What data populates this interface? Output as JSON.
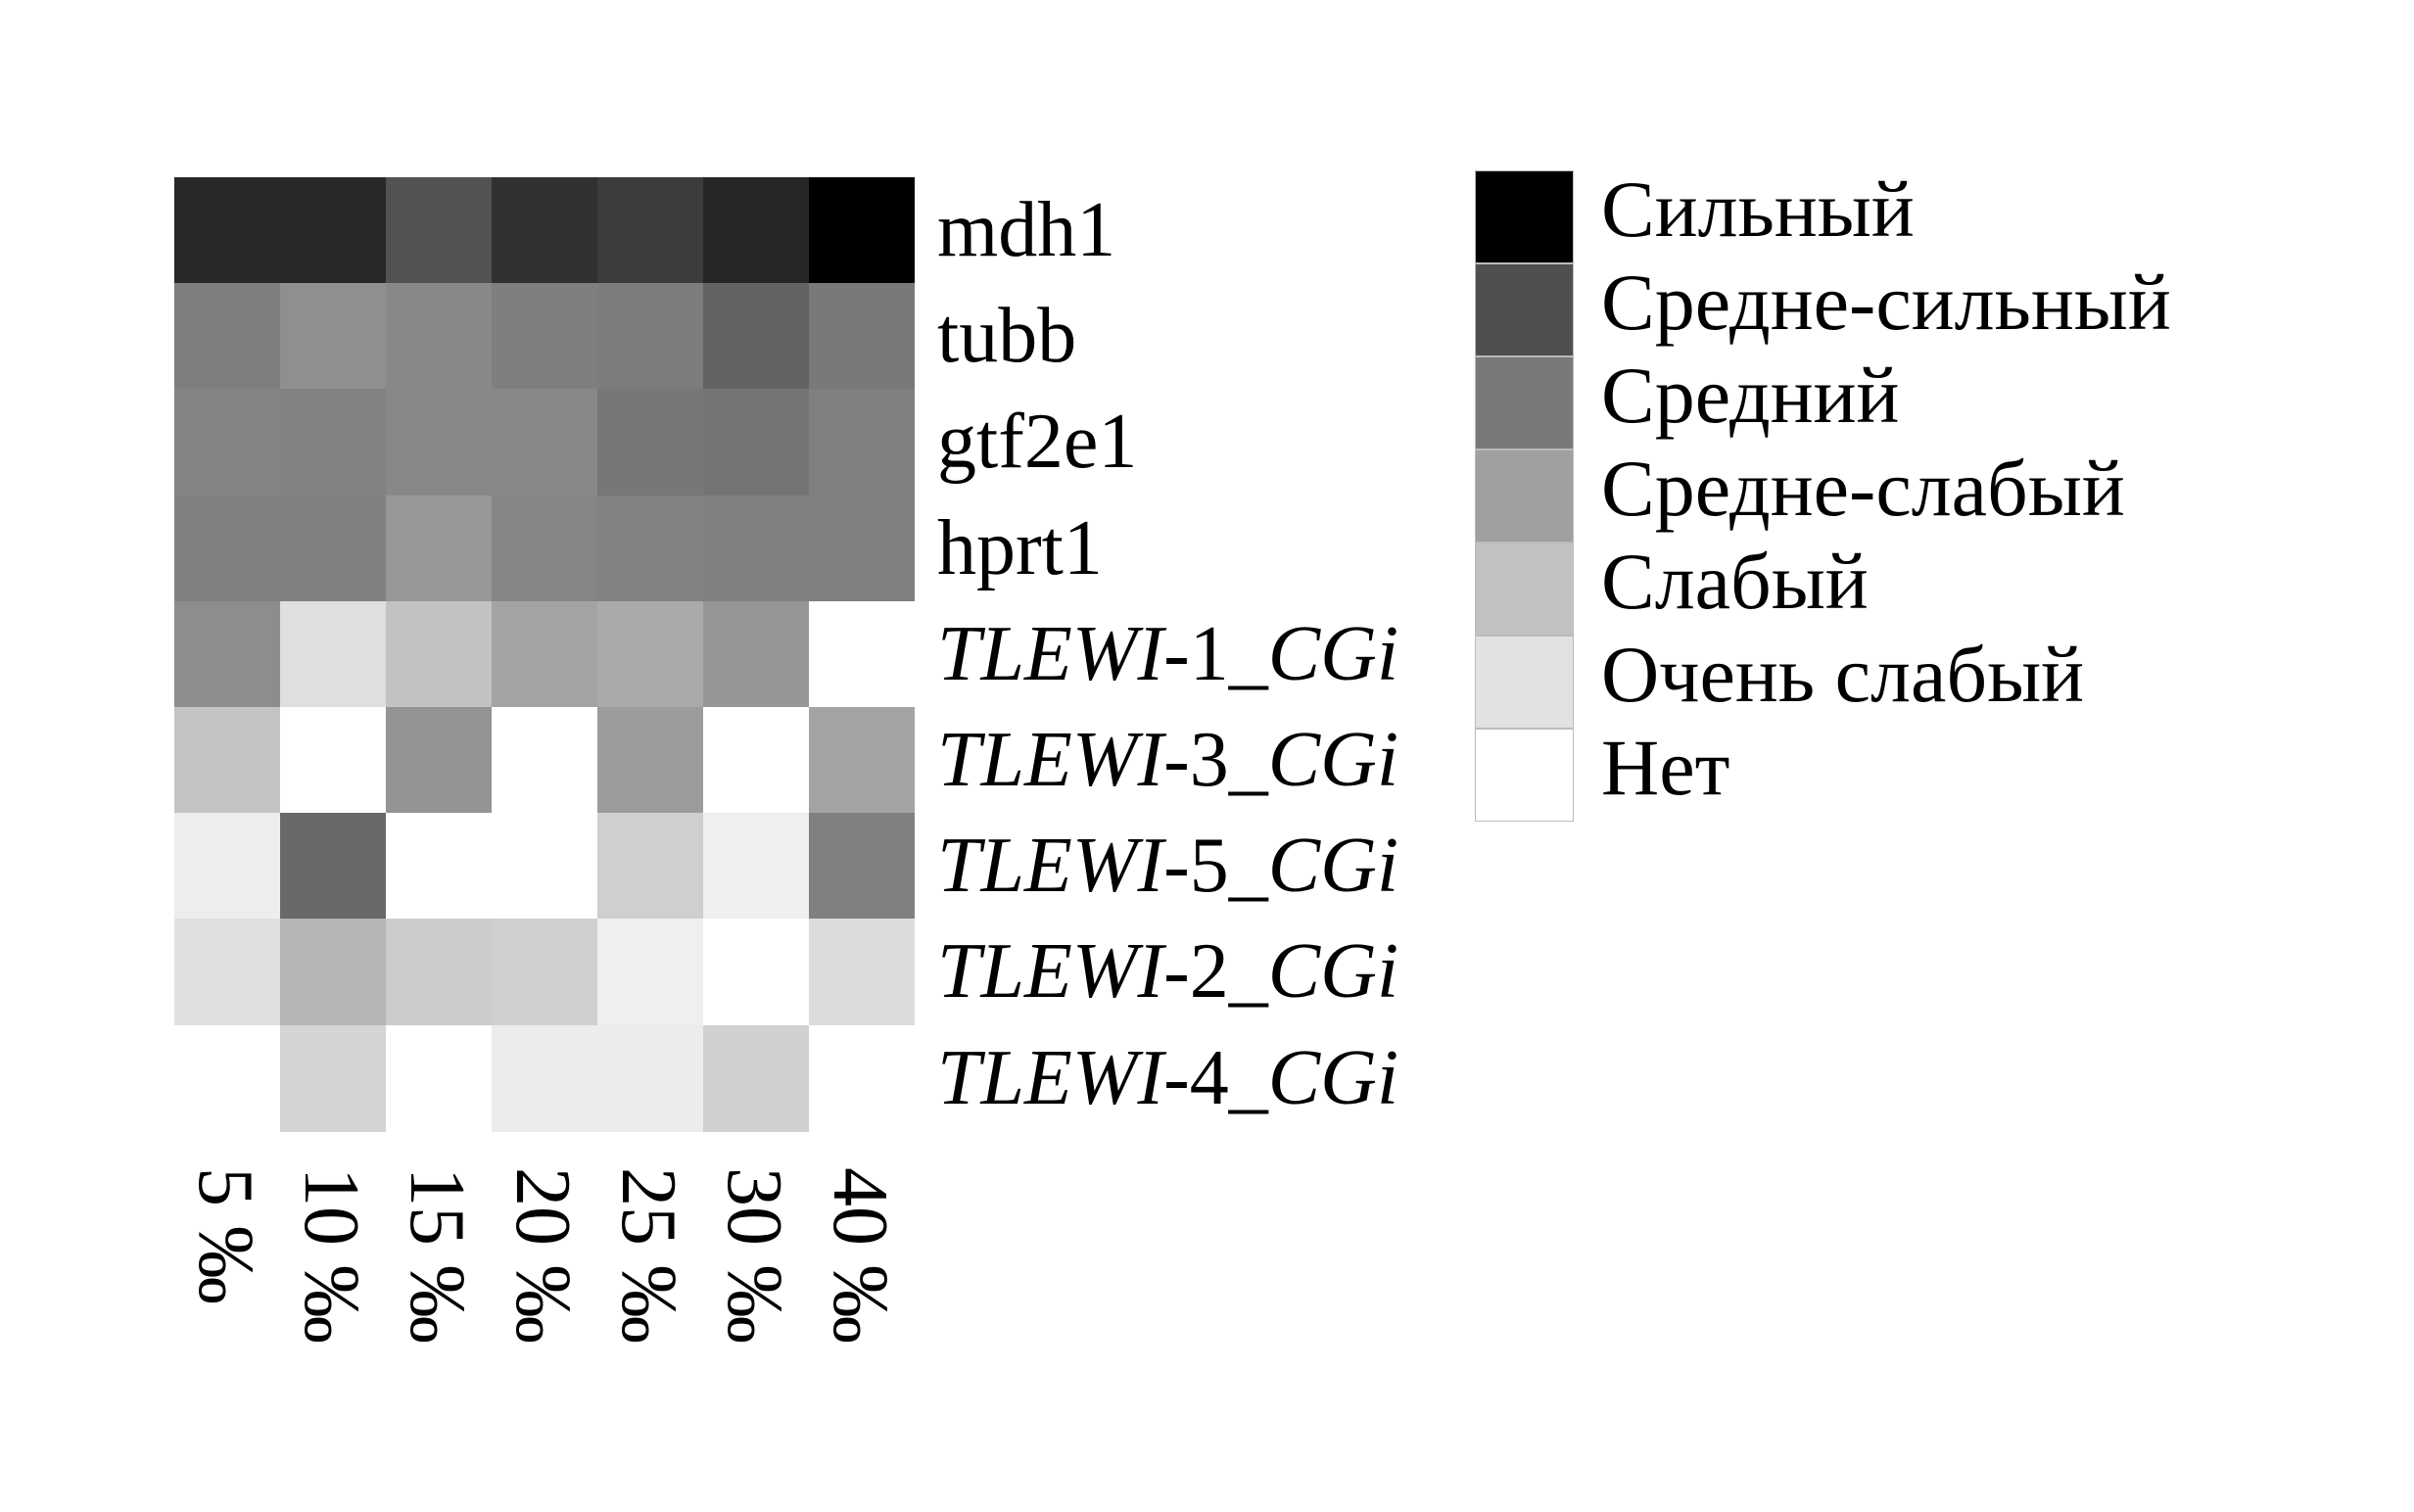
{
  "chart_data": {
    "type": "heatmap",
    "title": "",
    "rows": [
      {
        "label": "mdh1",
        "italic_part": "",
        "rest": "mdh1"
      },
      {
        "label": "tubb",
        "italic_part": "",
        "rest": "tubb"
      },
      {
        "label": "gtf2e1",
        "italic_part": "",
        "rest": "gtf2e1"
      },
      {
        "label": "hprt1",
        "italic_part": "",
        "rest": "hprt1"
      },
      {
        "label": "TLEWI-1_CGi",
        "italic_part": "TLEWI",
        "rest": "-1_",
        "italic_tail": "CGi"
      },
      {
        "label": "TLEWI-3_CGi",
        "italic_part": "TLEWI",
        "rest": "-3_",
        "italic_tail": "CGi"
      },
      {
        "label": "TLEWI-5_CGi",
        "italic_part": "TLEWI",
        "rest": "-5_",
        "italic_tail": "CGi"
      },
      {
        "label": "TLEWI-2_CGi",
        "italic_part": "TLEWI",
        "rest": "-2_",
        "italic_tail": "CGi"
      },
      {
        "label": "TLEWI-4_CGi",
        "italic_part": "TLEWI",
        "rest": "-4_",
        "italic_tail": "CGi"
      }
    ],
    "columns": [
      "5 ‰",
      "10 ‰",
      "15 ‰",
      "20 ‰",
      "25 ‰",
      "30 ‰",
      "40 ‰"
    ],
    "cell_colors": [
      [
        "#282828",
        "#282828",
        "#525252",
        "#313131",
        "#3c3c3c",
        "#262626",
        "#000000"
      ],
      [
        "#7e7e7e",
        "#8f8f8f",
        "#888888",
        "#7f7f7f",
        "#7c7c7c",
        "#626262",
        "#797979"
      ],
      [
        "#848484",
        "#828282",
        "#888888",
        "#888888",
        "#777777",
        "#747474",
        "#808080"
      ],
      [
        "#808080",
        "#808080",
        "#989898",
        "#858585",
        "#828282",
        "#808080",
        "#808080"
      ],
      [
        "#8d8d8d",
        "#dfdfdf",
        "#c2c2c2",
        "#a3a3a3",
        "#aaaaaa",
        "#969696",
        "#ffffff"
      ],
      [
        "#c4c4c4",
        "#ffffff",
        "#949494",
        "#ffffff",
        "#9c9c9c",
        "#ffffff",
        "#a3a3a3"
      ],
      [
        "#ededed",
        "#696969",
        "#ffffff",
        "#ffffff",
        "#cfcfcf",
        "#efefef",
        "#808080"
      ],
      [
        "#e0e0e0",
        "#b5b5b5",
        "#cccccc",
        "#d0d0d0",
        "#efefef",
        "#ffffff",
        "#dcdcdc"
      ],
      [
        "#ffffff",
        "#d4d4d4",
        "#ffffff",
        "#ececec",
        "#ececec",
        "#d0d0d0",
        "#ffffff"
      ]
    ],
    "legend": {
      "placement": "right",
      "items": [
        {
          "label": "Сильный",
          "color": "#000000"
        },
        {
          "label": "Средне-сильный",
          "color": "#4f4f4f"
        },
        {
          "label": "Средний",
          "color": "#797979"
        },
        {
          "label": "Средне-слабый",
          "color": "#a0a0a0"
        },
        {
          "label": "Слабый",
          "color": "#c2c2c2"
        },
        {
          "label": "Очень слабый",
          "color": "#e2e2e2"
        },
        {
          "label": "Нет",
          "color": "#ffffff"
        }
      ]
    },
    "grid": false
  }
}
